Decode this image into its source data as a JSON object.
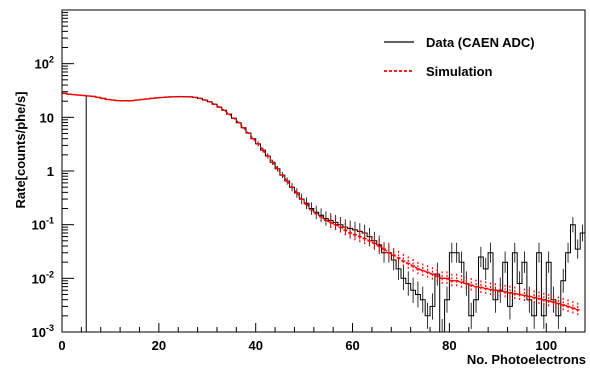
{
  "chart_data": {
    "type": "line",
    "title": "",
    "xlabel": "No. Photoelectrons",
    "ylabel": "Rate[counts/phe/s]",
    "xlim": [
      0,
      108
    ],
    "ylim": [
      0.001,
      1000
    ],
    "yscale": "log",
    "grid": false,
    "legend_position": "top-right",
    "x_ticks": [
      "0",
      "20",
      "40",
      "60",
      "80",
      "100"
    ],
    "y_ticks": [
      {
        "base": "10",
        "exp": "-3"
      },
      {
        "base": "10",
        "exp": "-2"
      },
      {
        "base": "10",
        "exp": "-1"
      },
      {
        "base": "1",
        "exp": ""
      },
      {
        "base": "10",
        "exp": ""
      },
      {
        "base": "10",
        "exp": "2"
      }
    ],
    "series": [
      {
        "name": "Data (CAEN ADC)",
        "style": "step-line",
        "color": "#000000",
        "points": [
          [
            1,
            28
          ],
          [
            2,
            27
          ],
          [
            3,
            26.5
          ],
          [
            4,
            26
          ],
          [
            5,
            25.5
          ],
          [
            6,
            25
          ],
          [
            7,
            24.5
          ],
          [
            8,
            23.5
          ],
          [
            9,
            22.5
          ],
          [
            10,
            21.5
          ],
          [
            11,
            21
          ],
          [
            12,
            20.5
          ],
          [
            13,
            20.3
          ],
          [
            14,
            20.3
          ],
          [
            15,
            20.5
          ],
          [
            16,
            21
          ],
          [
            17,
            21.5
          ],
          [
            18,
            22
          ],
          [
            19,
            22.5
          ],
          [
            20,
            23
          ],
          [
            21,
            23.4
          ],
          [
            22,
            23.8
          ],
          [
            23,
            24
          ],
          [
            24,
            24.2
          ],
          [
            25,
            24.3
          ],
          [
            26,
            24.2
          ],
          [
            27,
            24
          ],
          [
            28,
            23.5
          ],
          [
            29,
            22.5
          ],
          [
            30,
            21
          ],
          [
            31,
            19.5
          ],
          [
            32,
            17.5
          ],
          [
            33,
            15.5
          ],
          [
            34,
            13.5
          ],
          [
            35,
            11.5
          ],
          [
            36,
            9.6
          ],
          [
            37,
            7.9
          ],
          [
            38,
            6.4
          ],
          [
            39,
            5.1
          ],
          [
            40,
            4.0
          ],
          [
            41,
            3.2
          ],
          [
            42,
            2.45
          ],
          [
            43,
            1.9
          ],
          [
            44,
            1.45
          ],
          [
            45,
            1.1
          ],
          [
            46,
            0.84
          ],
          [
            47,
            0.65
          ],
          [
            48,
            0.5
          ],
          [
            49,
            0.39
          ],
          [
            50,
            0.3
          ],
          [
            51,
            0.25
          ],
          [
            52,
            0.2
          ],
          [
            53,
            0.17
          ],
          [
            54,
            0.15
          ],
          [
            55,
            0.13
          ],
          [
            56,
            0.12
          ],
          [
            57,
            0.11
          ],
          [
            58,
            0.1
          ],
          [
            59,
            0.09
          ],
          [
            60,
            0.085
          ],
          [
            61,
            0.08
          ],
          [
            62,
            0.075
          ],
          [
            63,
            0.07
          ],
          [
            64,
            0.06
          ],
          [
            65,
            0.05
          ],
          [
            66,
            0.042
          ],
          [
            67,
            0.03
          ],
          [
            68,
            0.03
          ],
          [
            69,
            0.022
          ],
          [
            70,
            0.015
          ],
          [
            71,
            0.01
          ],
          [
            72,
            0.008
          ],
          [
            73,
            0.006
          ],
          [
            74,
            0.005
          ],
          [
            75,
            0.004
          ],
          [
            76,
            0.002
          ],
          [
            77,
            0.003
          ],
          [
            78,
            0.012
          ],
          [
            79,
            0.001
          ],
          [
            80,
            0.004
          ],
          [
            81,
            0.03
          ],
          [
            82,
            0.03
          ],
          [
            83,
            0.02
          ],
          [
            84,
            0.008
          ],
          [
            85,
            0.002
          ],
          [
            86,
            0.004
          ],
          [
            87,
            0.025
          ],
          [
            88,
            0.015
          ],
          [
            89,
            0.03
          ],
          [
            90,
            0.004
          ],
          [
            91,
            0.006
          ],
          [
            92,
            0.02
          ],
          [
            93,
            0.003
          ],
          [
            94,
            0.03
          ],
          [
            95,
            0.008
          ],
          [
            96,
            0.02
          ],
          [
            97,
            0.004
          ],
          [
            98,
            0.002
          ],
          [
            99,
            0.03
          ],
          [
            100,
            0.002
          ],
          [
            101,
            0.02
          ],
          [
            102,
            0.004
          ],
          [
            103,
            0.002
          ],
          [
            104,
            0.009
          ],
          [
            105,
            0.03
          ],
          [
            106,
            0.1
          ],
          [
            107,
            0.035
          ],
          [
            108,
            0.07
          ]
        ]
      },
      {
        "name": "Simulation",
        "style": "dashed-markers",
        "color": "#ff0000",
        "points": [
          [
            1,
            28
          ],
          [
            2,
            27
          ],
          [
            3,
            26.5
          ],
          [
            4,
            26
          ],
          [
            5,
            25.5
          ],
          [
            6,
            25
          ],
          [
            7,
            24.5
          ],
          [
            8,
            23.5
          ],
          [
            9,
            22.5
          ],
          [
            10,
            21.5
          ],
          [
            11,
            21
          ],
          [
            12,
            20.5
          ],
          [
            13,
            20.3
          ],
          [
            14,
            20.3
          ],
          [
            15,
            20.5
          ],
          [
            16,
            21
          ],
          [
            17,
            21.5
          ],
          [
            18,
            22
          ],
          [
            19,
            22.5
          ],
          [
            20,
            23
          ],
          [
            21,
            23.4
          ],
          [
            22,
            23.8
          ],
          [
            23,
            24
          ],
          [
            24,
            24.2
          ],
          [
            25,
            24.3
          ],
          [
            26,
            24.2
          ],
          [
            27,
            24
          ],
          [
            28,
            23.5
          ],
          [
            29,
            22.5
          ],
          [
            30,
            21
          ],
          [
            31,
            19.5
          ],
          [
            32,
            17.5
          ],
          [
            33,
            15.5
          ],
          [
            34,
            13.5
          ],
          [
            35,
            11.5
          ],
          [
            36,
            9.6
          ],
          [
            37,
            7.9
          ],
          [
            38,
            6.4
          ],
          [
            39,
            5.1
          ],
          [
            40,
            4.0
          ],
          [
            41,
            3.2
          ],
          [
            42,
            2.45
          ],
          [
            43,
            1.9
          ],
          [
            44,
            1.45
          ],
          [
            45,
            1.1
          ],
          [
            46,
            0.84
          ],
          [
            47,
            0.65
          ],
          [
            48,
            0.5
          ],
          [
            49,
            0.39
          ],
          [
            50,
            0.3
          ],
          [
            51,
            0.24
          ],
          [
            52,
            0.19
          ],
          [
            53,
            0.16
          ],
          [
            54,
            0.14
          ],
          [
            55,
            0.12
          ],
          [
            56,
            0.11
          ],
          [
            57,
            0.1
          ],
          [
            58,
            0.09
          ],
          [
            59,
            0.08
          ],
          [
            60,
            0.07
          ],
          [
            61,
            0.065
          ],
          [
            62,
            0.06
          ],
          [
            63,
            0.055
          ],
          [
            64,
            0.05
          ],
          [
            65,
            0.045
          ],
          [
            66,
            0.04
          ],
          [
            67,
            0.035
          ],
          [
            68,
            0.03
          ],
          [
            69,
            0.027
          ],
          [
            70,
            0.024
          ],
          [
            71,
            0.021
          ],
          [
            72,
            0.019
          ],
          [
            73,
            0.017
          ],
          [
            74,
            0.015
          ],
          [
            75,
            0.014
          ],
          [
            76,
            0.013
          ],
          [
            77,
            0.012
          ],
          [
            78,
            0.011
          ],
          [
            79,
            0.01
          ],
          [
            80,
            0.01
          ],
          [
            81,
            0.009
          ],
          [
            82,
            0.009
          ],
          [
            83,
            0.0085
          ],
          [
            84,
            0.008
          ],
          [
            85,
            0.0075
          ],
          [
            86,
            0.007
          ],
          [
            87,
            0.0068
          ],
          [
            88,
            0.0065
          ],
          [
            89,
            0.0062
          ],
          [
            90,
            0.006
          ],
          [
            91,
            0.0058
          ],
          [
            92,
            0.0056
          ],
          [
            93,
            0.0054
          ],
          [
            94,
            0.0052
          ],
          [
            95,
            0.005
          ],
          [
            96,
            0.0048
          ],
          [
            97,
            0.0046
          ],
          [
            98,
            0.0044
          ],
          [
            99,
            0.0042
          ],
          [
            100,
            0.004
          ],
          [
            101,
            0.0038
          ],
          [
            102,
            0.0036
          ],
          [
            103,
            0.0034
          ],
          [
            104,
            0.0032
          ],
          [
            105,
            0.003
          ],
          [
            106,
            0.0028
          ],
          [
            107,
            0.0026
          ]
        ]
      }
    ]
  }
}
